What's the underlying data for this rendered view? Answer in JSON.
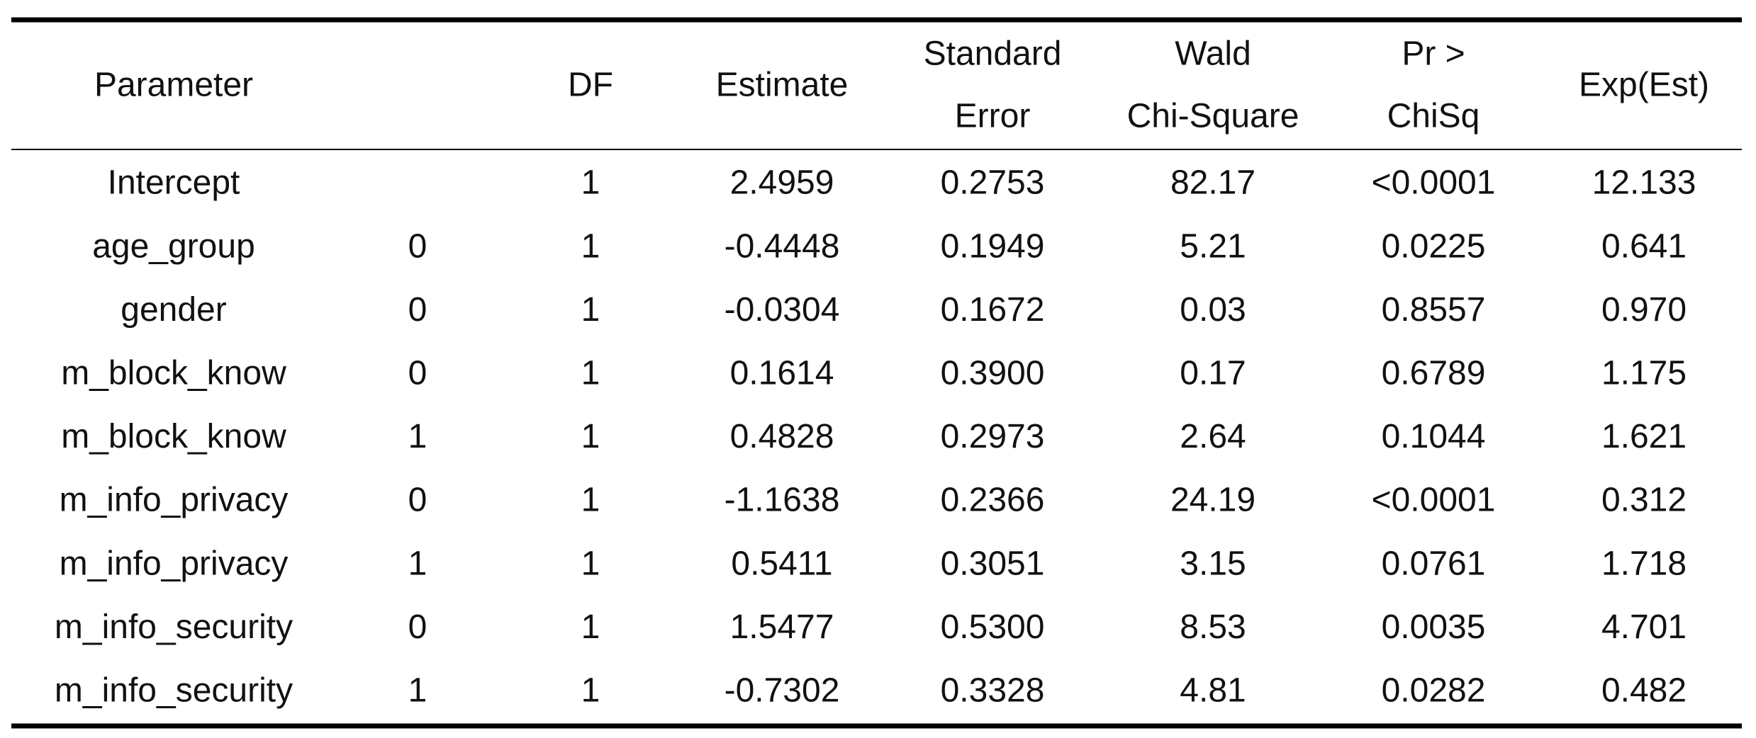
{
  "table": {
    "header": [
      [
        "Parameter"
      ],
      [
        "DF"
      ],
      [
        "Estimate"
      ],
      [
        "Standard",
        "Error"
      ],
      [
        "Wald",
        "Chi-Square"
      ],
      [
        "Pr >",
        "ChiSq"
      ],
      [
        "Exp(Est)"
      ]
    ],
    "rows": [
      [
        "Intercept",
        null,
        "1",
        "2.4959",
        "0.2753",
        "82.17",
        "<0.0001",
        "12.133"
      ],
      [
        "age_group",
        "0",
        "1",
        "-0.4448",
        "0.1949",
        "5.21",
        "0.0225",
        "0.641"
      ],
      [
        "gender",
        "0",
        "1",
        "-0.0304",
        "0.1672",
        "0.03",
        "0.8557",
        "0.970"
      ],
      [
        "m_block_know",
        "0",
        "1",
        "0.1614",
        "0.3900",
        "0.17",
        "0.6789",
        "1.175"
      ],
      [
        "m_block_know",
        "1",
        "1",
        "0.4828",
        "0.2973",
        "2.64",
        "0.1044",
        "1.621"
      ],
      [
        "m_info_privacy",
        "0",
        "1",
        "-1.1638",
        "0.2366",
        "24.19",
        "<0.0001",
        "0.312"
      ],
      [
        "m_info_privacy",
        "1",
        "1",
        "0.5411",
        "0.3051",
        "3.15",
        "0.0761",
        "1.718"
      ],
      [
        "m_info_security",
        "0",
        "1",
        "1.5477",
        "0.5300",
        "8.53",
        "0.0035",
        "4.701"
      ],
      [
        "m_info_security",
        "1",
        "1",
        "-0.7302",
        "0.3328",
        "4.81",
        "0.0282",
        "0.482"
      ]
    ]
  }
}
